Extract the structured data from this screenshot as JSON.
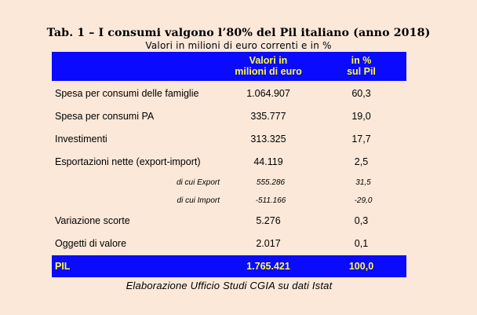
{
  "title": "Tab. 1 – I consumi valgono l’80% del Pil italiano (anno 2018)",
  "subtitle": "Valori in milioni di euro correnti e in %",
  "header": {
    "col1_line1": "Valori in",
    "col1_line2": "milioni di euro",
    "col2_line1": "in %",
    "col2_line2": "sul Pil"
  },
  "rows": [
    {
      "label": "Spesa per consumi delle famiglie",
      "value": "1.064.907",
      "pct": "60,3"
    },
    {
      "label": "Spesa per consumi PA",
      "value": "335.777",
      "pct": "19,0"
    },
    {
      "label": "Investimenti",
      "value": "313.325",
      "pct": "17,7"
    },
    {
      "label": "Esportazioni nette (export-import)",
      "value": "44.119",
      "pct": "2,5"
    },
    {
      "label": "di cui Export",
      "value": "555.286",
      "pct": "31,5"
    },
    {
      "label": "di cui Import",
      "value": "-511.166",
      "pct": "-29,0"
    },
    {
      "label": "Variazione scorte",
      "value": "5.276",
      "pct": "0,3"
    },
    {
      "label": "Oggetti di valore",
      "value": "2.017",
      "pct": "0,1"
    }
  ],
  "total": {
    "label": "PIL",
    "value": "1.765.421",
    "pct": "100,0"
  },
  "source": "Elaborazione Ufficio Studi CGIA su dati Istat",
  "colors": {
    "background": "#fbe8d9",
    "header_bg": "#0a0aff",
    "header_text": "#ffff3a"
  }
}
